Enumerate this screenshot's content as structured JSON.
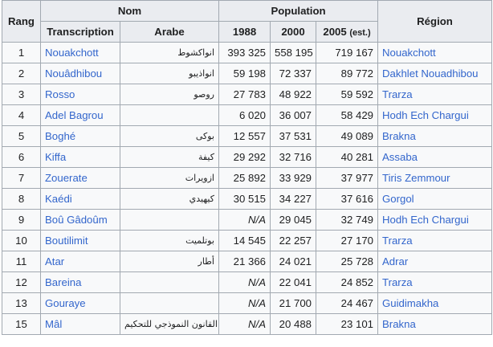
{
  "headers": {
    "rang": "Rang",
    "nom": "Nom",
    "population": "Population",
    "region": "Région",
    "transcription": "Transcription",
    "arabe": "Arabe",
    "y1988": "1988",
    "y2000": "2000",
    "y2005": "2005",
    "est": "(est.)"
  },
  "rows": [
    {
      "rang": "1",
      "transcription": "Nouakchott",
      "arabe": "انواكشوط",
      "p1988": "393 325",
      "p2000": "558 195",
      "p2005": "719 167",
      "region": "Nouakchott"
    },
    {
      "rang": "2",
      "transcription": "Nouâdhibou",
      "arabe": "انواذيبو",
      "p1988": "59 198",
      "p2000": "72 337",
      "p2005": "89 772",
      "region": "Dakhlet Nouadhibou"
    },
    {
      "rang": "3",
      "transcription": "Rosso",
      "arabe": "روصو",
      "p1988": "27 783",
      "p2000": "48 922",
      "p2005": "59 592",
      "region": "Trarza"
    },
    {
      "rang": "4",
      "transcription": "Adel Bagrou",
      "arabe": "",
      "p1988": "6 020",
      "p2000": "36 007",
      "p2005": "58 429",
      "region": "Hodh Ech Chargui"
    },
    {
      "rang": "5",
      "transcription": "Boghé",
      "arabe": "بوكى",
      "p1988": "12 557",
      "p2000": "37 531",
      "p2005": "49 089",
      "region": "Brakna"
    },
    {
      "rang": "6",
      "transcription": "Kiffa",
      "arabe": "كيفة",
      "p1988": "29 292",
      "p2000": "32 716",
      "p2005": "40 281",
      "region": "Assaba"
    },
    {
      "rang": "7",
      "transcription": "Zouerate",
      "arabe": "ازويرات",
      "p1988": "25 892",
      "p2000": "33 929",
      "p2005": "37 977",
      "region": "Tiris Zemmour"
    },
    {
      "rang": "8",
      "transcription": "Kaédi",
      "arabe": "كيهيدي",
      "p1988": "30 515",
      "p2000": "34 227",
      "p2005": "37 616",
      "region": "Gorgol"
    },
    {
      "rang": "9",
      "transcription": "Boû Gâdoûm",
      "arabe": "",
      "p1988": "N/A",
      "p2000": "29 045",
      "p2005": "32 749",
      "region": "Hodh Ech Chargui"
    },
    {
      "rang": "10",
      "transcription": "Boutilimit",
      "arabe": "بوتلميت",
      "p1988": "14 545",
      "p2000": "22 257",
      "p2005": "27 170",
      "region": "Trarza"
    },
    {
      "rang": "11",
      "transcription": "Atar",
      "arabe": "أطار",
      "p1988": "21 366",
      "p2000": "24 021",
      "p2005": "25 728",
      "region": "Adrar"
    },
    {
      "rang": "12",
      "transcription": "Bareina",
      "arabe": "",
      "p1988": "N/A",
      "p2000": "22 041",
      "p2005": "24 852",
      "region": "Trarza"
    },
    {
      "rang": "13",
      "transcription": "Gouraye",
      "arabe": "",
      "p1988": "N/A",
      "p2000": "21 700",
      "p2005": "24 467",
      "region": "Guidimakha"
    },
    {
      "rang": "15",
      "transcription": "Mâl",
      "arabe": "القانون النموذجي للتحكيم",
      "p1988": "N/A",
      "p2000": "20 488",
      "p2005": "23 101",
      "region": "Brakna"
    }
  ]
}
